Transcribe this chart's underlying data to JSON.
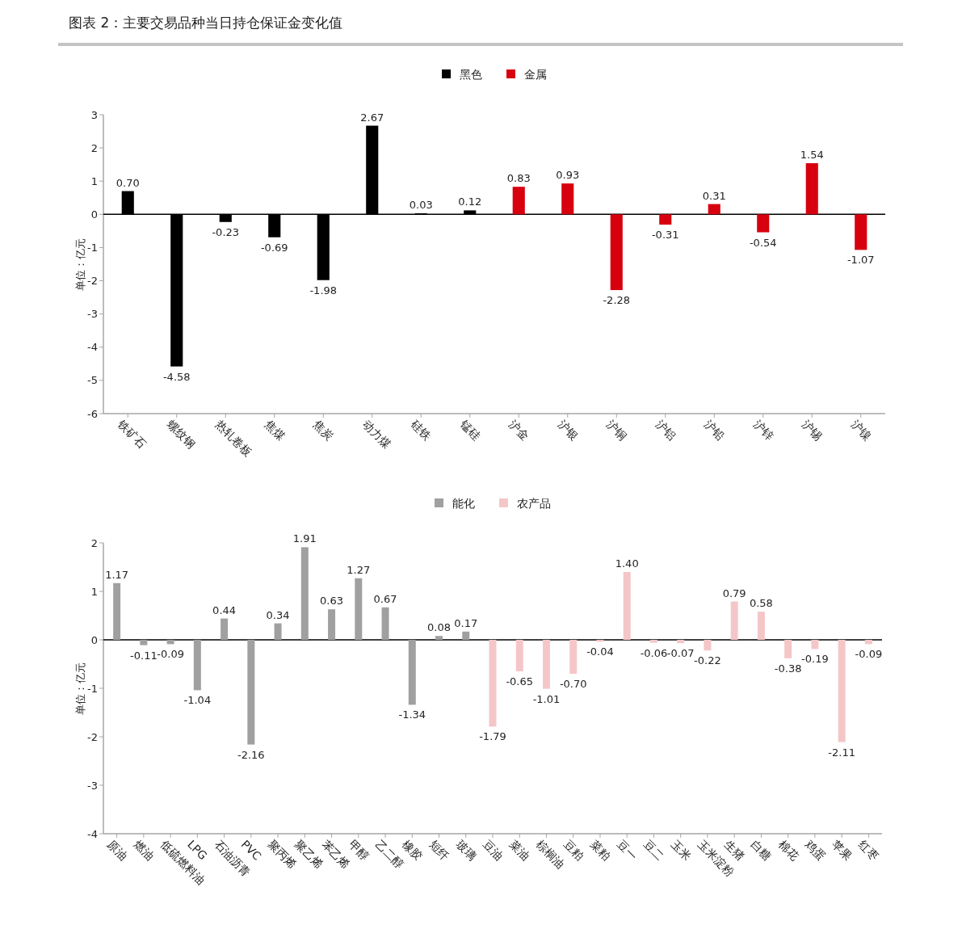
{
  "chart_data": [
    {
      "type": "bar",
      "title": "图表 2：主要交易品种当日持仓保证金变化值",
      "categories": [
        "铁矿石",
        "螺纹钢",
        "热轧卷板",
        "焦煤",
        "焦炭",
        "动力煤",
        "硅铁",
        "锰硅",
        "沪金",
        "沪银",
        "沪铜",
        "沪铝",
        "沪铅",
        "沪锌",
        "沪锡",
        "沪镍"
      ],
      "ylabel": "单位：亿元",
      "ylim": [
        -6,
        3
      ],
      "yticks": [
        -6,
        -5,
        -4,
        -3,
        -2,
        -1,
        0,
        1,
        2,
        3
      ],
      "legend": "top",
      "series": [
        {
          "name": "黑色",
          "color": "#000000",
          "values": [
            0.7,
            -4.58,
            -0.23,
            -0.69,
            -1.98,
            2.67,
            0.03,
            0.12,
            null,
            null,
            null,
            null,
            null,
            null,
            null,
            null
          ],
          "value_labels": [
            "0.70",
            "-4.58",
            "-0.23",
            "-0.69",
            "-1.98",
            "2.67",
            "0.03",
            "0.12",
            null,
            null,
            null,
            null,
            null,
            null,
            null,
            null
          ]
        },
        {
          "name": "金属",
          "color": "#d7000f",
          "values": [
            null,
            null,
            null,
            null,
            null,
            null,
            null,
            null,
            0.83,
            0.93,
            -2.28,
            -0.31,
            0.31,
            -0.54,
            1.54,
            -1.07
          ],
          "value_labels": [
            null,
            null,
            null,
            null,
            null,
            null,
            null,
            null,
            "0.83",
            "0.93",
            "-2.28",
            "-0.31",
            "0.31",
            "-0.54",
            "1.54",
            "-1.07"
          ]
        }
      ]
    },
    {
      "type": "bar",
      "categories": [
        "原油",
        "燃油",
        "低硫燃料油",
        "LPG",
        "石油沥青",
        "PVC",
        "聚丙烯",
        "聚乙烯",
        "苯乙烯",
        "甲醇",
        "乙二醇",
        "橡胶",
        "短纤",
        "玻璃",
        "豆油",
        "菜油",
        "棕榈油",
        "豆粕",
        "菜粕",
        "豆一",
        "豆二",
        "玉米",
        "玉米淀粉",
        "生猪",
        "白糖",
        "棉花",
        "鸡蛋",
        "苹果",
        "红枣"
      ],
      "ylabel": "单位：亿元",
      "ylim": [
        -4,
        2
      ],
      "yticks": [
        -4,
        -3,
        -2,
        -1,
        0,
        1,
        2
      ],
      "legend": "top",
      "series": [
        {
          "name": "能化",
          "color": "#a0a0a0",
          "values": [
            1.17,
            -0.11,
            -0.09,
            -1.04,
            0.44,
            -2.16,
            0.34,
            1.91,
            0.63,
            1.27,
            0.67,
            -1.34,
            0.08,
            0.17,
            null,
            null,
            null,
            null,
            null,
            null,
            null,
            null,
            null,
            null,
            null,
            null,
            null,
            null,
            null
          ],
          "value_labels": [
            "1.17",
            "-0.11",
            "-0.09",
            "-1.04",
            "0.44",
            "-2.16",
            "0.34",
            "1.91",
            "0.63",
            "1.27",
            "0.67",
            "-1.34",
            "0.08",
            "0.17",
            null,
            null,
            null,
            null,
            null,
            null,
            null,
            null,
            null,
            null,
            null,
            null,
            null,
            null,
            null
          ]
        },
        {
          "name": "农产品",
          "color": "#f4c6c8",
          "values": [
            null,
            null,
            null,
            null,
            null,
            null,
            null,
            null,
            null,
            null,
            null,
            null,
            null,
            null,
            -1.79,
            -0.65,
            -1.01,
            -0.7,
            -0.04,
            1.4,
            -0.06,
            -0.07,
            -0.22,
            0.79,
            0.58,
            -0.38,
            -0.19,
            -2.11,
            -0.09
          ],
          "value_labels": [
            null,
            null,
            null,
            null,
            null,
            null,
            null,
            null,
            null,
            null,
            null,
            null,
            null,
            null,
            "-1.79",
            "-0.65",
            "-1.01",
            "-0.70",
            "-0.04",
            "1.40",
            "-0.06",
            "-0.07",
            "-0.22",
            "0.79",
            "0.58",
            "-0.38",
            "-0.19",
            "-2.11",
            "-0.09"
          ]
        }
      ]
    }
  ]
}
